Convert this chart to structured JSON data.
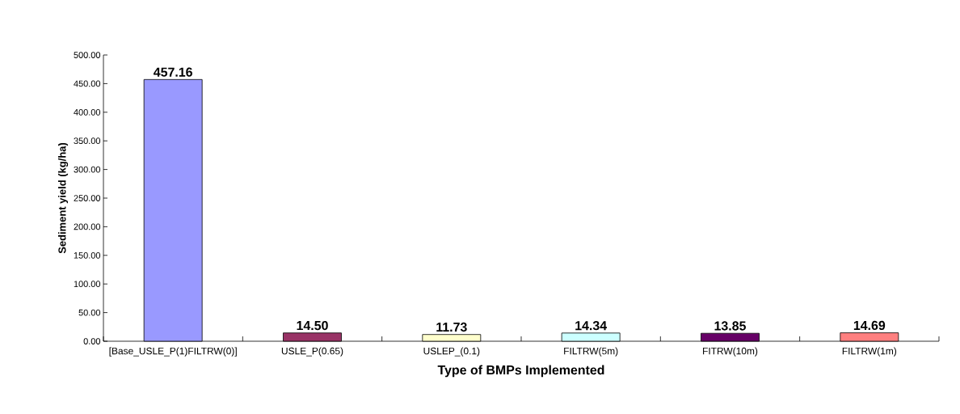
{
  "chart_data": {
    "type": "bar",
    "xlabel": "Type of BMPs Implemented",
    "ylabel": "Sediment yield (kg/ha)",
    "categories": [
      "[Base_USLE_P(1)FILTRW(0)]",
      "USLE_P(0.65)",
      "USLEP_(0.1)",
      "FILTRW(5m)",
      "FITRW(10m)",
      "FILTRW(1m)"
    ],
    "values": [
      457.16,
      14.5,
      11.73,
      14.34,
      13.85,
      14.69
    ],
    "colors": [
      "#9999ff",
      "#993366",
      "#ffffcc",
      "#ccffff",
      "#660066",
      "#ff8080"
    ],
    "value_labels": [
      "457.16",
      "14.50",
      "11.73",
      "14.34",
      "13.85",
      "14.69"
    ],
    "ylim": [
      0,
      500
    ],
    "yticks": [
      {
        "value": 0,
        "label": "0.00"
      },
      {
        "value": 50,
        "label": "50.00"
      },
      {
        "value": 100,
        "label": "100.00"
      },
      {
        "value": 150,
        "label": "150.00"
      },
      {
        "value": 200,
        "label": "200.00"
      },
      {
        "value": 250,
        "label": "250.00"
      },
      {
        "value": 300,
        "label": "300.00"
      },
      {
        "value": 350,
        "label": "350.00"
      },
      {
        "value": 400,
        "label": "400.00"
      },
      {
        "value": 450,
        "label": "450.00"
      },
      {
        "value": 500,
        "label": "500.00"
      }
    ],
    "grid": false
  }
}
